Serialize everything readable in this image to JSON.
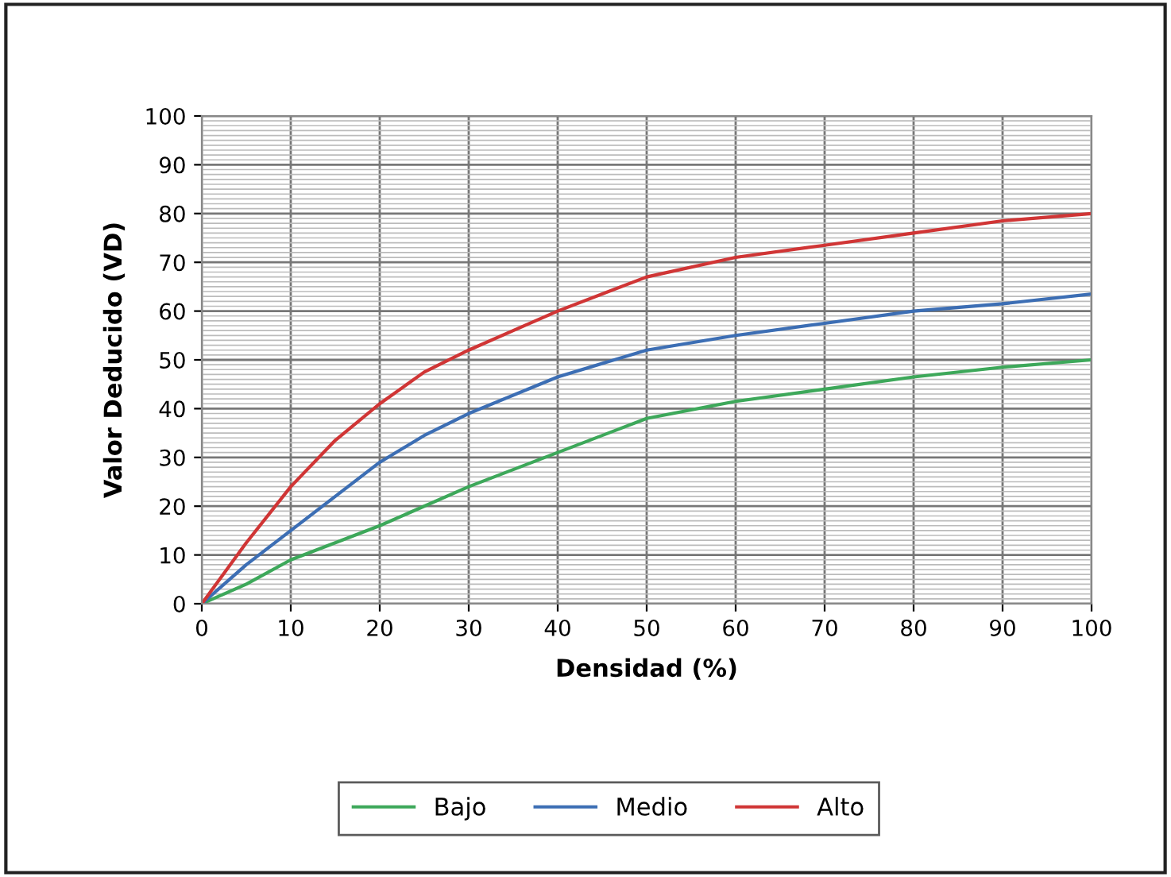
{
  "chart_data": {
    "type": "line",
    "xlabel": "Densidad (%)",
    "ylabel": "Valor Deducido (VD)",
    "xlim": [
      0,
      100
    ],
    "xticks": [
      0,
      10,
      20,
      30,
      40,
      50,
      60,
      70,
      80,
      90,
      100
    ],
    "ylim": [
      0,
      100
    ],
    "yticks": [
      0,
      10,
      20,
      30,
      40,
      50,
      60,
      70,
      80,
      90,
      100
    ],
    "grid": true,
    "legend": "bottom",
    "marker": "none",
    "line_style": "solid",
    "series": [
      {
        "name": "Bajo",
        "color": "#3da85a",
        "x": [
          0,
          5,
          10,
          15,
          20,
          30,
          40,
          50,
          60,
          70,
          80,
          90,
          100
        ],
        "values": [
          0,
          4,
          9,
          12.5,
          16,
          24,
          31,
          38,
          41.5,
          44,
          46.5,
          48.5,
          50
        ]
      },
      {
        "name": "Medio",
        "color": "#3c6eb4",
        "x": [
          0,
          5,
          10,
          15,
          20,
          25,
          30,
          40,
          50,
          60,
          70,
          80,
          90,
          100
        ],
        "values": [
          0,
          8,
          15,
          22,
          29,
          34.5,
          39,
          46.5,
          52,
          55,
          57.5,
          60,
          61.5,
          63.5
        ]
      },
      {
        "name": "Alto",
        "color": "#d03535",
        "x": [
          0,
          5,
          10,
          15,
          20,
          25,
          30,
          35,
          40,
          50,
          60,
          70,
          80,
          90,
          100
        ],
        "values": [
          0,
          12.5,
          24,
          33.5,
          41,
          47.5,
          52,
          56,
          60,
          67,
          71,
          73.5,
          76,
          78.5,
          80
        ]
      }
    ]
  }
}
